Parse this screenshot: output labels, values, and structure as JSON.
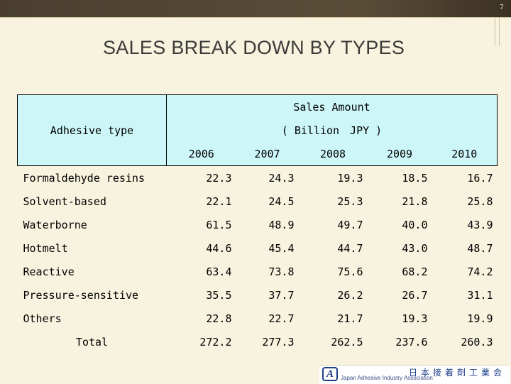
{
  "page_number": "7",
  "title": "SALES BREAK DOWN BY TYPES",
  "table": {
    "col_header": "Adhesive type",
    "amount_header": "Sales Amount",
    "unit_header": "( Billion　JPY )",
    "years": [
      "2006",
      "2007",
      "2008",
      "2009",
      "2010"
    ],
    "rows": [
      {
        "label": "Formaldehyde resins",
        "values": [
          "22.3",
          "24.3",
          "19.3",
          "18.5",
          "16.7"
        ]
      },
      {
        "label": "Solvent-based",
        "values": [
          "22.1",
          "24.5",
          "25.3",
          "21.8",
          "25.8"
        ]
      },
      {
        "label": "Waterborne",
        "values": [
          "61.5",
          "48.9",
          "49.7",
          "40.0",
          "43.9"
        ]
      },
      {
        "label": "Hotmelt",
        "values": [
          "44.6",
          "45.4",
          "44.7",
          "43.0",
          "48.7"
        ]
      },
      {
        "label": "Reactive",
        "values": [
          "63.4",
          "73.8",
          "75.6",
          "68.2",
          "74.2"
        ]
      },
      {
        "label": "Pressure-sensitive",
        "values": [
          "35.5",
          "37.7",
          "26.2",
          "26.7",
          "31.1"
        ]
      },
      {
        "label": "Others",
        "values": [
          "22.8",
          "22.7",
          "21.7",
          "19.3",
          "19.9"
        ]
      }
    ],
    "total": {
      "label": "Total",
      "values": [
        "272.2",
        "277.3",
        "262.5",
        "237.6",
        "260.3"
      ]
    }
  },
  "logo": {
    "mark": "A",
    "name_jp": "日本接着剤工業会",
    "name_en": "Japan Adhesive Industry Association"
  },
  "colors": {
    "header_bg": "#cdf6f8",
    "background": "#f7f3df",
    "logo_blue": "#1d3f8a"
  }
}
